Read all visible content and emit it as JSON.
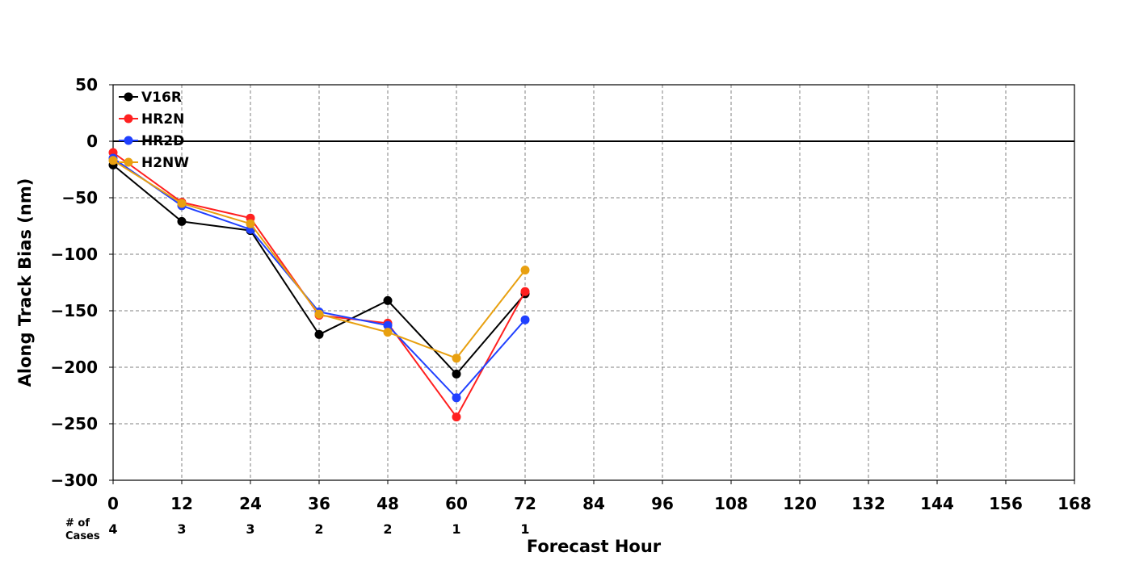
{
  "chart_data": {
    "type": "line",
    "title": "",
    "xlabel": "Forecast Hour",
    "ylabel": "Along Track Bias (nm)",
    "xlim": [
      0,
      168
    ],
    "ylim": [
      -300,
      50
    ],
    "x_ticks": [
      0,
      12,
      24,
      36,
      48,
      60,
      72,
      84,
      96,
      108,
      120,
      132,
      144,
      156,
      168
    ],
    "y_ticks": [
      50,
      0,
      -50,
      -100,
      -150,
      -200,
      -250,
      -300
    ],
    "y_tick_labels": [
      "50",
      "0",
      "−50",
      "−100",
      "−150",
      "−200",
      "−250",
      "−300"
    ],
    "grid": true,
    "zero_line": true,
    "legend_position": "top-left",
    "series": [
      {
        "name": "V16R",
        "color": "#000000",
        "x": [
          0,
          12,
          24,
          36,
          48,
          60,
          72
        ],
        "values": [
          -21,
          -71,
          -79,
          -171,
          -141,
          -206,
          -135
        ]
      },
      {
        "name": "HR2N",
        "color": "#ff2020",
        "x": [
          0,
          12,
          24,
          36,
          48,
          60,
          72
        ],
        "values": [
          -10,
          -54,
          -68,
          -154,
          -161,
          -244,
          -133
        ]
      },
      {
        "name": "HR2D",
        "color": "#2040ff",
        "x": [
          0,
          12,
          24,
          36,
          48,
          60,
          72
        ],
        "values": [
          -15,
          -57,
          -78,
          -151,
          -163,
          -227,
          -158
        ]
      },
      {
        "name": "H2NW",
        "color": "#e8a010",
        "x": [
          0,
          12,
          24,
          36,
          48,
          60,
          72
        ],
        "values": [
          -17,
          -55,
          -73,
          -153,
          -169,
          -192,
          -114
        ]
      }
    ],
    "cases": {
      "label_line1": "# of",
      "label_line2": "Cases",
      "x": [
        0,
        12,
        24,
        36,
        48,
        60,
        72
      ],
      "values": [
        "4",
        "3",
        "3",
        "2",
        "2",
        "1",
        "1"
      ]
    }
  }
}
